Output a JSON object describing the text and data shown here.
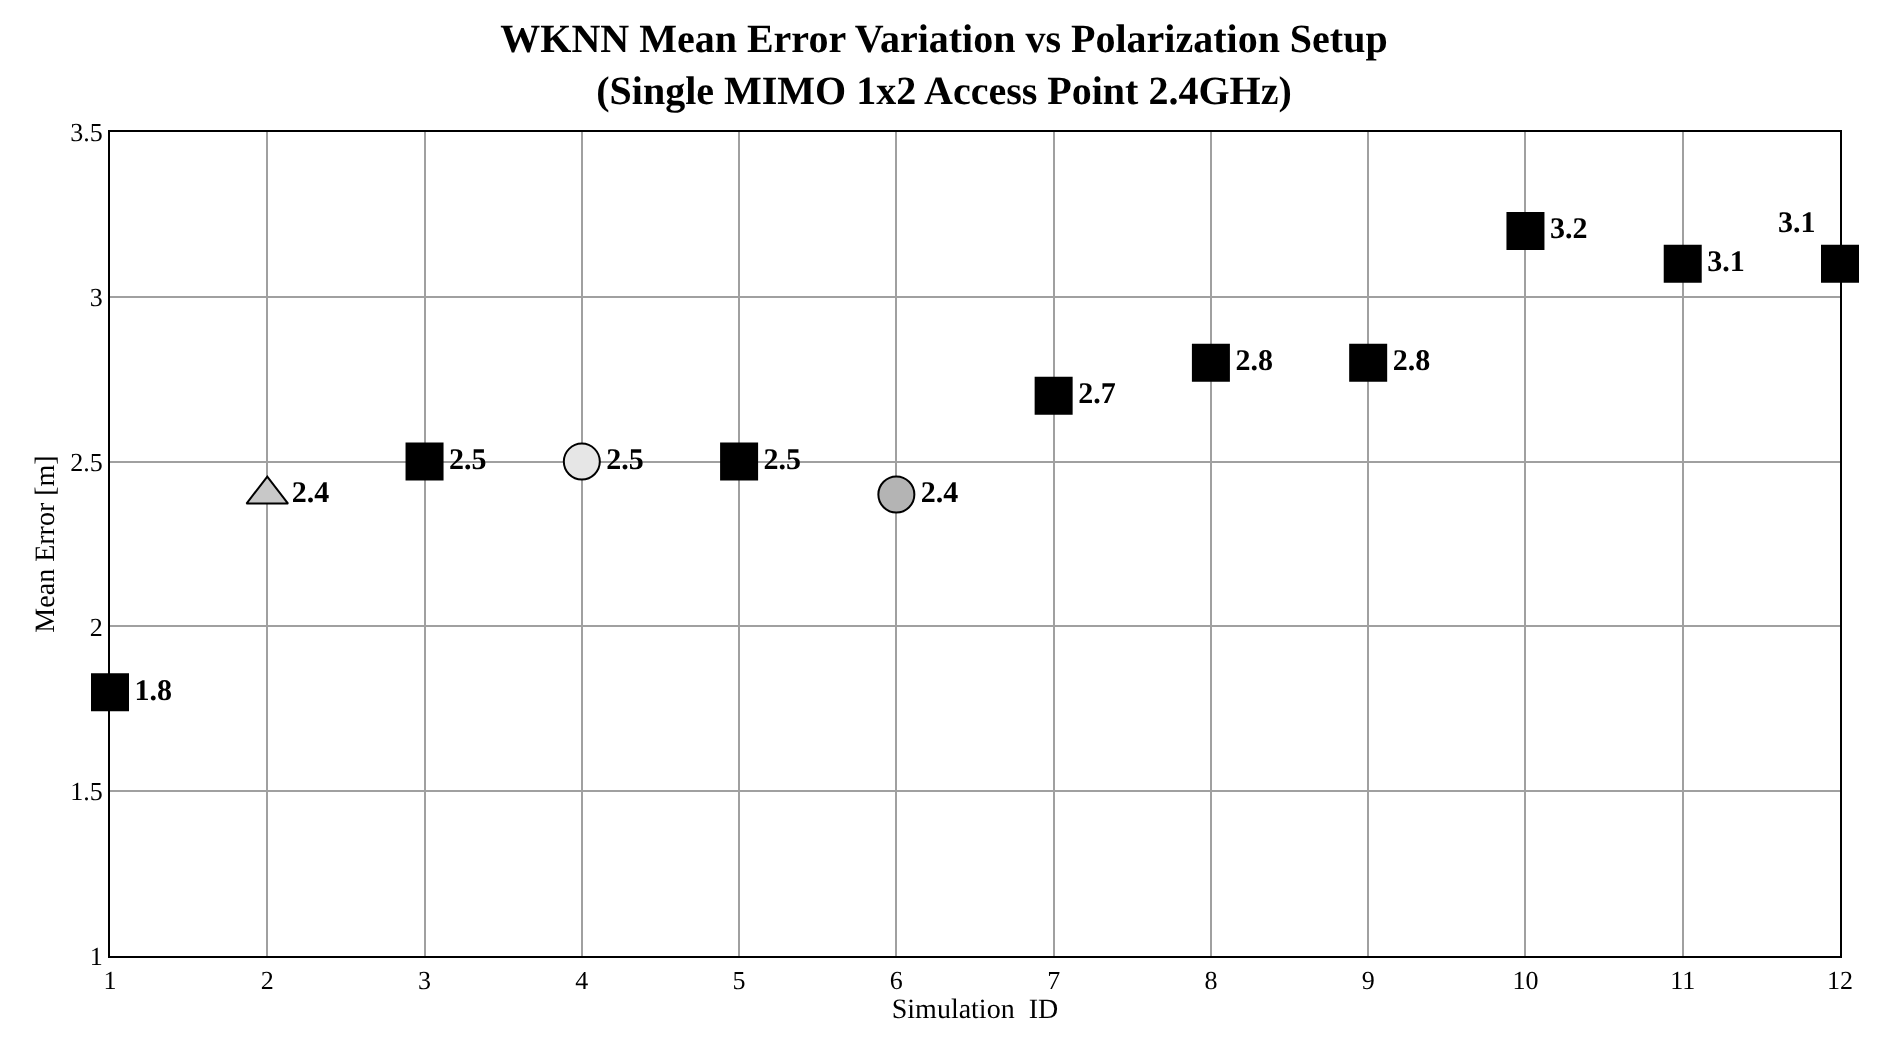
{
  "chart_data": {
    "type": "scatter",
    "title": "WKNN Mean Error Variation vs Polarization Setup\n(Single MIMO 1x2 Access Point 2.4GHz)",
    "xlabel": "Simulation  ID",
    "ylabel": "Mean Error [m]",
    "series": [
      {
        "color": "#000000",
        "marker": "square",
        "x": [
          1,
          3,
          5,
          7,
          8,
          9,
          10,
          11,
          12
        ],
        "values": [
          1.8,
          2.5,
          2.5,
          2.7,
          2.8,
          2.8,
          3.2,
          3.1,
          3.1
        ]
      },
      {
        "color": "#c8c8c8",
        "marker": "triangle",
        "x": [
          2
        ],
        "values": [
          2.4
        ]
      },
      {
        "color": "#e6e6e6",
        "marker": "circle",
        "x": [
          4
        ],
        "values": [
          2.5
        ]
      },
      {
        "color": "#b4b4b4",
        "marker": "circle",
        "x": [
          6
        ],
        "values": [
          2.4
        ]
      }
    ],
    "xlim": [
      1,
      12
    ],
    "xticks": [
      1,
      2,
      3,
      4,
      5,
      6,
      7,
      8,
      9,
      10,
      11,
      12
    ],
    "ylim": [
      1,
      3.5
    ],
    "yticks": [
      1,
      1.5,
      2,
      2.5,
      3,
      3.5
    ],
    "grid": true,
    "data_labels": true
  }
}
